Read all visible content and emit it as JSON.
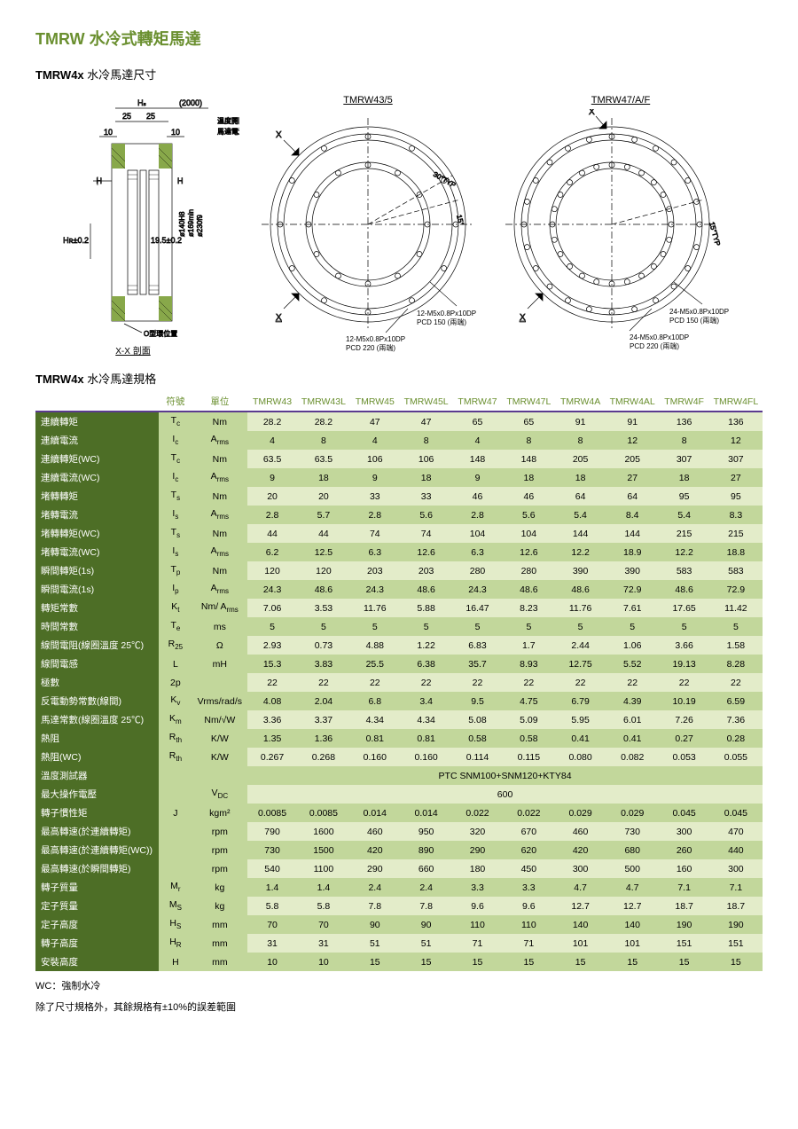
{
  "page_title": "TMRW  水冷式轉矩馬達",
  "subtitle_bold": "TMRW4x",
  "subtitle_rest": "  水冷馬達尺寸",
  "spec_title_bold": "TMRW4x",
  "spec_title_rest": "  水冷馬達規格",
  "diagram": {
    "section_label": "X-X 剖面",
    "ring_label": "O型環位置",
    "temp_line": "溫度開關線",
    "power_line": "馬達電源線",
    "d1": "ø140H8",
    "d2": "ø169min",
    "d3": "ø230f9",
    "dim_2000": "(2000)",
    "dim_25a": "25",
    "dim_25b": "25",
    "dim_10a": "10",
    "dim_10b": "10",
    "dim_Hs": "Hₛ",
    "dim_H": "H",
    "dim_HR": "Hʀ±0.2",
    "dim_195": "19.5±0.2",
    "view_a": "TMRW43/5",
    "view_b": "TMRW47/A/F",
    "ang_30": "30°TYP",
    "ang_15a": "15°",
    "ang_15b": "15°TYP",
    "hole_a1": "12-M5x0.8Px10DP",
    "hole_a1_pcd": "PCD 150 (兩端)",
    "hole_a2": "12-M5x0.8Px10DP",
    "hole_a2_pcd": "PCD 220 (兩端)",
    "hole_b1": "24-M5x0.8Px10DP",
    "hole_b1_pcd": "PCD 150 (兩端)",
    "hole_b2": "24-M5x0.8Px10DP",
    "hole_b2_pcd": "PCD 220 (兩端)",
    "mark_X": "X"
  },
  "headers": [
    "符號",
    "單位",
    "TMRW43",
    "TMRW43L",
    "TMRW45",
    "TMRW45L",
    "TMRW47",
    "TMRW47L",
    "TMRW4A",
    "TMRW4AL",
    "TMRW4F",
    "TMRW4FL"
  ],
  "rows": [
    {
      "label": "連續轉矩",
      "sym": "T_c",
      "unit": "Nm",
      "vals": [
        "28.2",
        "28.2",
        "47",
        "47",
        "65",
        "65",
        "91",
        "91",
        "136",
        "136"
      ]
    },
    {
      "label": "連續電流",
      "sym": "I_c",
      "unit": "A_rms",
      "vals": [
        "4",
        "8",
        "4",
        "8",
        "4",
        "8",
        "8",
        "12",
        "8",
        "12"
      ]
    },
    {
      "label": "連續轉矩(WC)",
      "sym": "T_c",
      "unit": "Nm",
      "vals": [
        "63.5",
        "63.5",
        "106",
        "106",
        "148",
        "148",
        "205",
        "205",
        "307",
        "307"
      ]
    },
    {
      "label": "連續電流(WC)",
      "sym": "I_c",
      "unit": "A_rms",
      "vals": [
        "9",
        "18",
        "9",
        "18",
        "9",
        "18",
        "18",
        "27",
        "18",
        "27"
      ]
    },
    {
      "label": "堵轉轉矩",
      "sym": "T_s",
      "unit": "Nm",
      "vals": [
        "20",
        "20",
        "33",
        "33",
        "46",
        "46",
        "64",
        "64",
        "95",
        "95"
      ]
    },
    {
      "label": "堵轉電流",
      "sym": "I_s",
      "unit": "A_rms",
      "vals": [
        "2.8",
        "5.7",
        "2.8",
        "5.6",
        "2.8",
        "5.6",
        "5.4",
        "8.4",
        "5.4",
        "8.3"
      ]
    },
    {
      "label": "堵轉轉矩(WC)",
      "sym": "T_s",
      "unit": "Nm",
      "vals": [
        "44",
        "44",
        "74",
        "74",
        "104",
        "104",
        "144",
        "144",
        "215",
        "215"
      ]
    },
    {
      "label": "堵轉電流(WC)",
      "sym": "I_s",
      "unit": "A_rms",
      "vals": [
        "6.2",
        "12.5",
        "6.3",
        "12.6",
        "6.3",
        "12.6",
        "12.2",
        "18.9",
        "12.2",
        "18.8"
      ]
    },
    {
      "label": "瞬間轉矩(1s)",
      "sym": "T_p",
      "unit": "Nm",
      "vals": [
        "120",
        "120",
        "203",
        "203",
        "280",
        "280",
        "390",
        "390",
        "583",
        "583"
      ]
    },
    {
      "label": "瞬間電流(1s)",
      "sym": "I_p",
      "unit": "A_rms",
      "vals": [
        "24.3",
        "48.6",
        "24.3",
        "48.6",
        "24.3",
        "48.6",
        "48.6",
        "72.9",
        "48.6",
        "72.9"
      ]
    },
    {
      "label": "轉矩常數",
      "sym": "K_t",
      "unit": "Nm/ A_rms",
      "vals": [
        "7.06",
        "3.53",
        "11.76",
        "5.88",
        "16.47",
        "8.23",
        "11.76",
        "7.61",
        "17.65",
        "11.42"
      ]
    },
    {
      "label": "時間常數",
      "sym": "T_e",
      "unit": "ms",
      "vals": [
        "5",
        "5",
        "5",
        "5",
        "5",
        "5",
        "5",
        "5",
        "5",
        "5"
      ]
    },
    {
      "label": "線間電阻(線圈溫度 25℃)",
      "sym": "R_25",
      "unit": "Ω",
      "vals": [
        "2.93",
        "0.73",
        "4.88",
        "1.22",
        "6.83",
        "1.7",
        "2.44",
        "1.06",
        "3.66",
        "1.58"
      ]
    },
    {
      "label": "線間電感",
      "sym": "L",
      "unit": "mH",
      "vals": [
        "15.3",
        "3.83",
        "25.5",
        "6.38",
        "35.7",
        "8.93",
        "12.75",
        "5.52",
        "19.13",
        "8.28"
      ]
    },
    {
      "label": "極數",
      "sym": "2p",
      "unit": "",
      "vals": [
        "22",
        "22",
        "22",
        "22",
        "22",
        "22",
        "22",
        "22",
        "22",
        "22"
      ]
    },
    {
      "label": "反電動勢常數(線間)",
      "sym": "K_v",
      "unit": "Vrms/rad/s",
      "vals": [
        "4.08",
        "2.04",
        "6.8",
        "3.4",
        "9.5",
        "4.75",
        "6.79",
        "4.39",
        "10.19",
        "6.59"
      ]
    },
    {
      "label": "馬達常數(線圈溫度 25℃)",
      "sym": "K_m",
      "unit": "Nm/√W",
      "vals": [
        "3.36",
        "3.37",
        "4.34",
        "4.34",
        "5.08",
        "5.09",
        "5.95",
        "6.01",
        "7.26",
        "7.36"
      ]
    },
    {
      "label": "熱阻",
      "sym": "R_th",
      "unit": "K/W",
      "vals": [
        "1.35",
        "1.36",
        "0.81",
        "0.81",
        "0.58",
        "0.58",
        "0.41",
        "0.41",
        "0.27",
        "0.28"
      ]
    },
    {
      "label": "熱阻(WC)",
      "sym": "R_th",
      "unit": "K/W",
      "vals": [
        "0.267",
        "0.268",
        "0.160",
        "0.160",
        "0.114",
        "0.115",
        "0.080",
        "0.082",
        "0.053",
        "0.055"
      ]
    },
    {
      "label": "溫度測試器",
      "sym": "",
      "unit": "",
      "span": "PTC SNM100+SNM120+KTY84"
    },
    {
      "label": "最大操作電壓",
      "sym": "",
      "unit": "V_DC",
      "span": "600"
    },
    {
      "label": "轉子慣性矩",
      "sym": "J",
      "unit": "kgm²",
      "vals": [
        "0.0085",
        "0.0085",
        "0.014",
        "0.014",
        "0.022",
        "0.022",
        "0.029",
        "0.029",
        "0.045",
        "0.045"
      ]
    },
    {
      "label": "最高轉速(於連續轉矩)",
      "sym": "",
      "unit": "rpm",
      "vals": [
        "790",
        "1600",
        "460",
        "950",
        "320",
        "670",
        "460",
        "730",
        "300",
        "470"
      ]
    },
    {
      "label": "最高轉速(於連續轉矩(WC))",
      "sym": "",
      "unit": "rpm",
      "vals": [
        "730",
        "1500",
        "420",
        "890",
        "290",
        "620",
        "420",
        "680",
        "260",
        "440"
      ]
    },
    {
      "label": "最高轉速(於瞬間轉矩)",
      "sym": "",
      "unit": "rpm",
      "vals": [
        "540",
        "1100",
        "290",
        "660",
        "180",
        "450",
        "300",
        "500",
        "160",
        "300"
      ]
    },
    {
      "label": "轉子質量",
      "sym": "M_r",
      "unit": "kg",
      "vals": [
        "1.4",
        "1.4",
        "2.4",
        "2.4",
        "3.3",
        "3.3",
        "4.7",
        "4.7",
        "7.1",
        "7.1"
      ]
    },
    {
      "label": "定子質量",
      "sym": "M_S",
      "unit": "kg",
      "vals": [
        "5.8",
        "5.8",
        "7.8",
        "7.8",
        "9.6",
        "9.6",
        "12.7",
        "12.7",
        "18.7",
        "18.7"
      ]
    },
    {
      "label": "定子高度",
      "sym": "H_S",
      "unit": "mm",
      "vals": [
        "70",
        "70",
        "90",
        "90",
        "110",
        "110",
        "140",
        "140",
        "190",
        "190"
      ]
    },
    {
      "label": "轉子高度",
      "sym": "H_R",
      "unit": "mm",
      "vals": [
        "31",
        "31",
        "51",
        "51",
        "71",
        "71",
        "101",
        "101",
        "151",
        "151"
      ]
    },
    {
      "label": "安裝高度",
      "sym": "H",
      "unit": "mm",
      "vals": [
        "10",
        "10",
        "15",
        "15",
        "15",
        "15",
        "15",
        "15",
        "15",
        "15"
      ]
    }
  ],
  "footer1": "WC：強制水冷",
  "footer2": "除了尺寸規格外，其餘規格有±10%的誤差範圍",
  "colors": {
    "header_green": "#6a8f2f",
    "row_label_bg": "#4d6e26",
    "cell_light": "#e3ecc9",
    "cell_dark": "#c2d79b",
    "header_border": "#5b3a8f"
  }
}
